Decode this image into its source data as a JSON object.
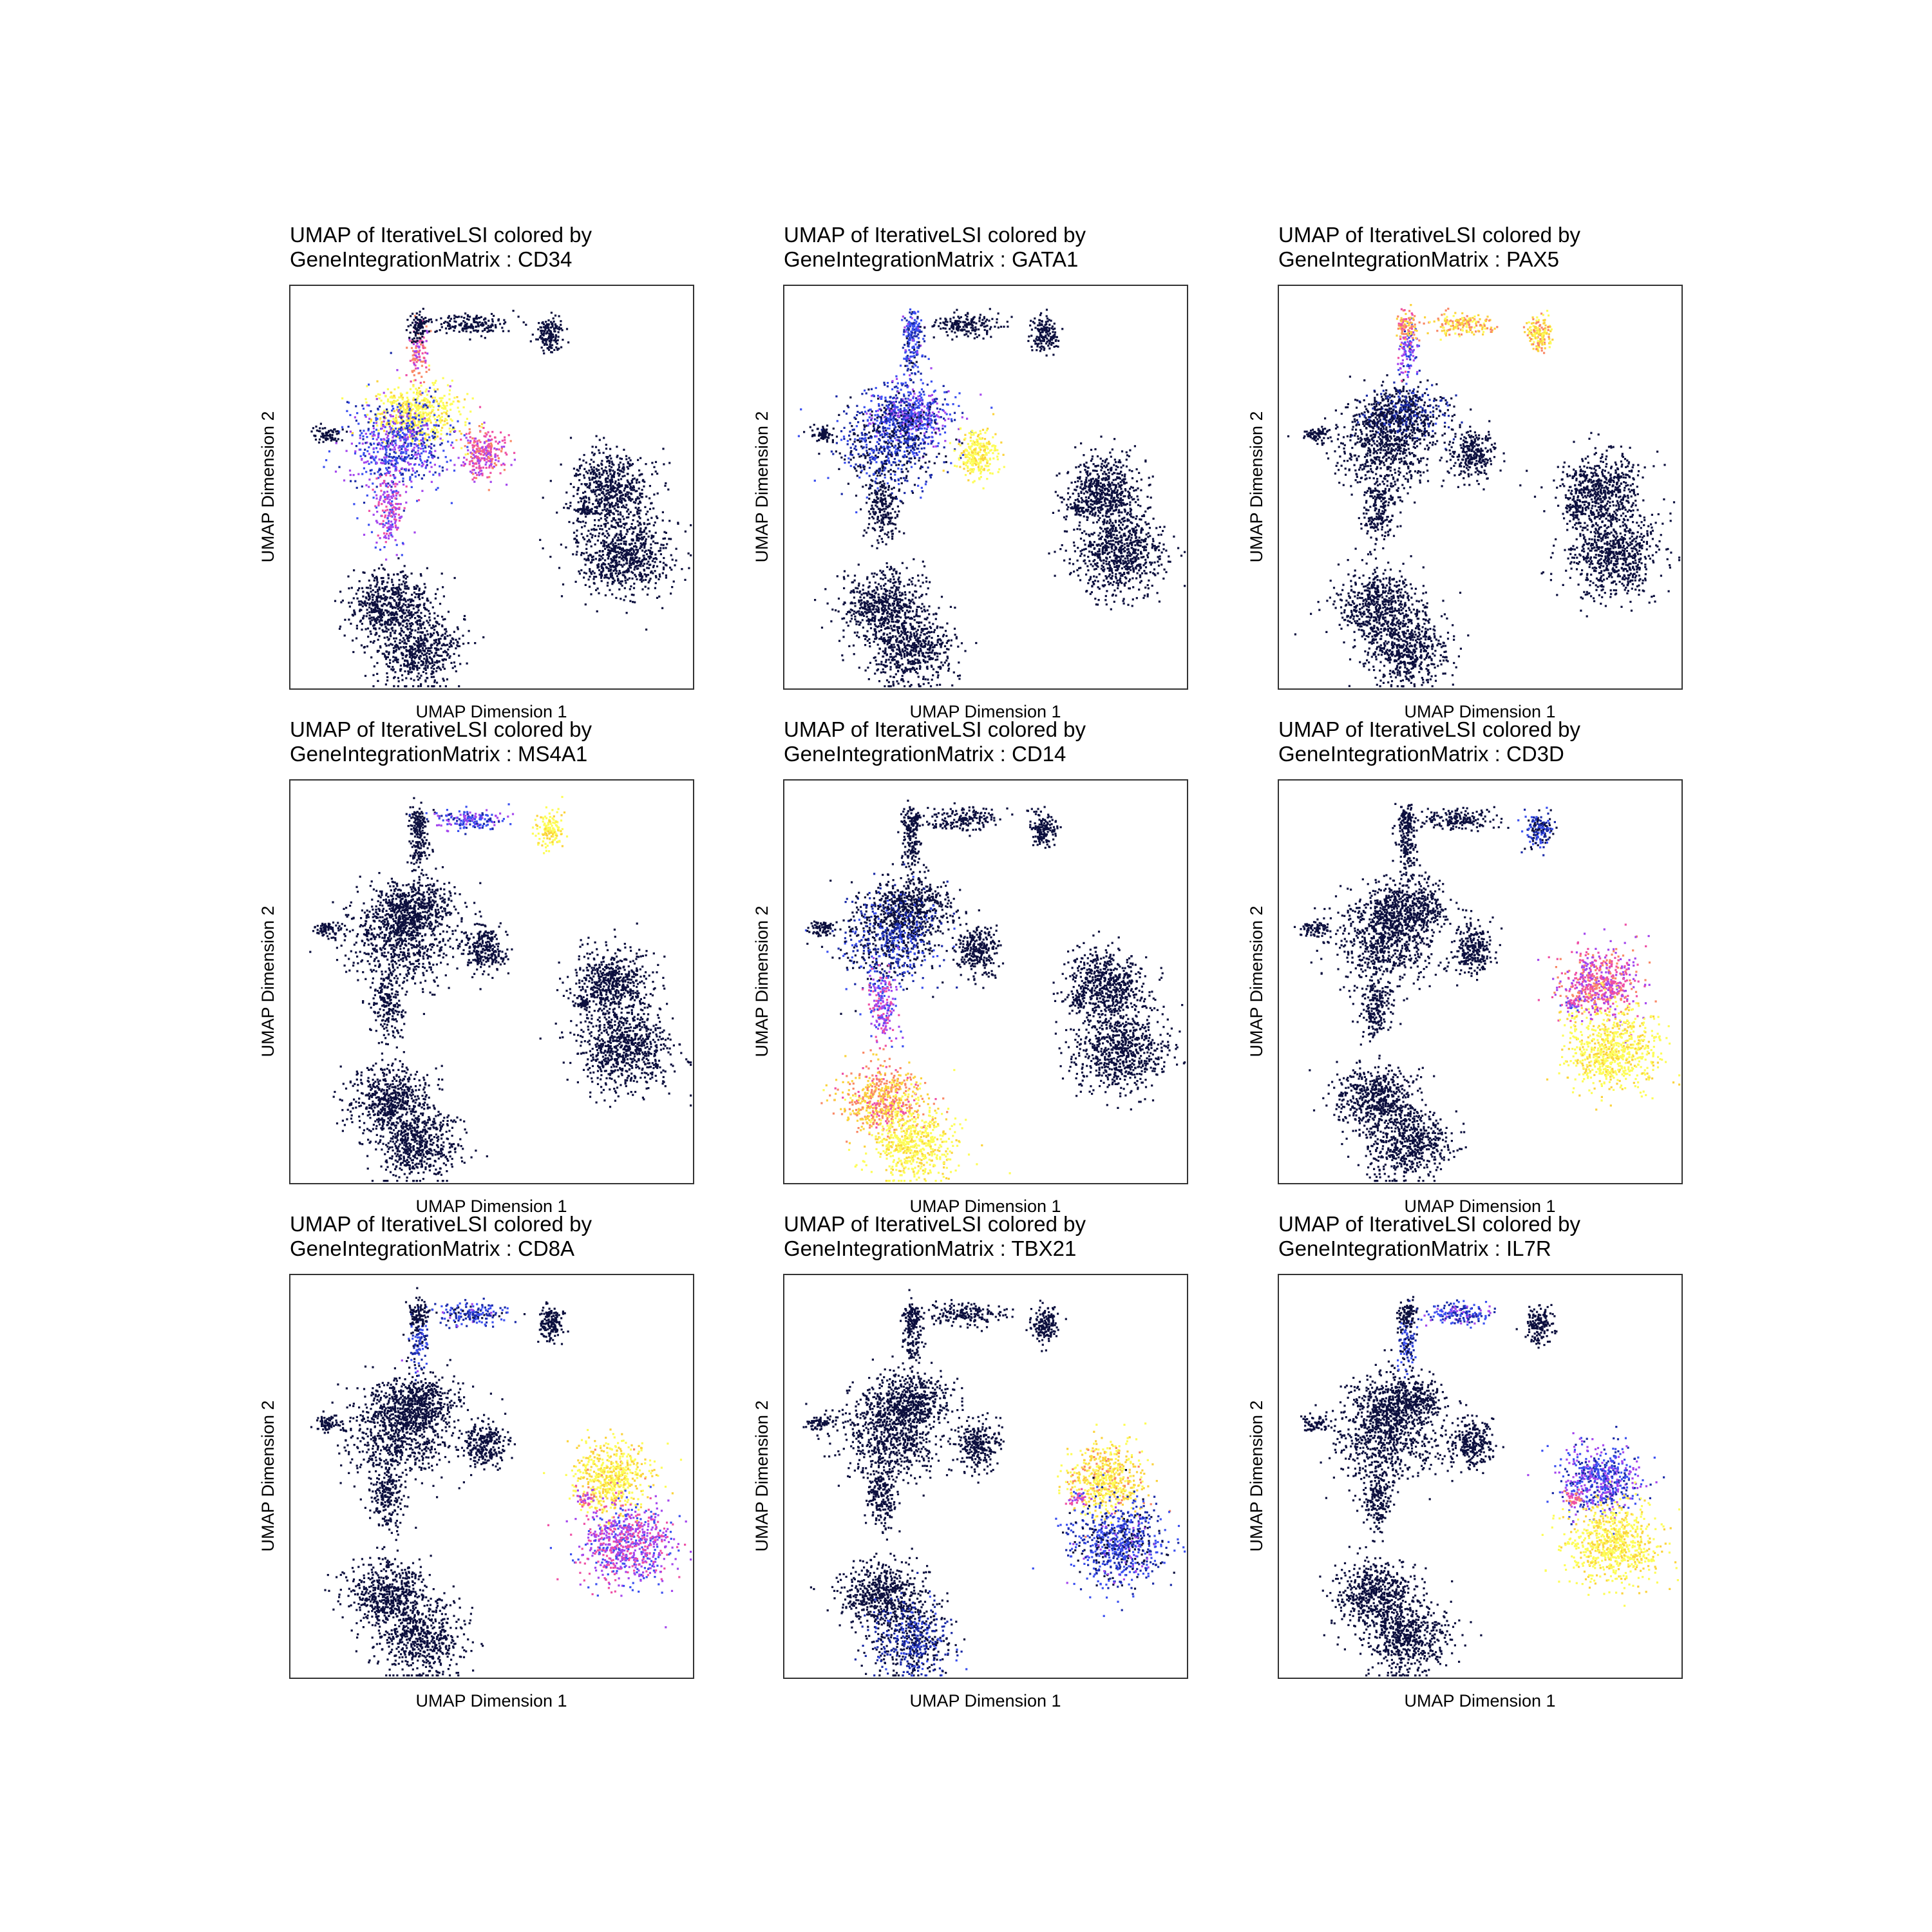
{
  "colors": {
    "background": "#ffffff",
    "frame": "#333333",
    "low": "#0c0f3e",
    "palette": [
      "#0c0f3e",
      "#1a2aa6",
      "#3a4ff0",
      "#a446ee",
      "#ee4fa6",
      "#f98866",
      "#fbd33d",
      "#fdfd58"
    ]
  },
  "chart_data": [
    {
      "type": "scatter",
      "title_line1": "UMAP of IterativeLSI colored by",
      "title_line2": "GeneIntegrationMatrix : CD34",
      "xlabel": "UMAP Dimension 1",
      "ylabel": "UMAP Dimension 2",
      "grid": false,
      "color_scale": "blue-purple-yellow",
      "expression": {
        "progenitor": 1.0,
        "erythroid": 0.55,
        "myeloid_bridge": 0.45,
        "left_mid": 0.3,
        "upper_stem": 0.6,
        "b_stem": 0.1
      }
    },
    {
      "type": "scatter",
      "title_line1": "UMAP of IterativeLSI colored by",
      "title_line2": "GeneIntegrationMatrix : GATA1",
      "xlabel": "UMAP Dimension 1",
      "ylabel": "UMAP Dimension 2",
      "grid": false,
      "color_scale": "blue-purple-yellow",
      "expression": {
        "erythroid": 1.0,
        "progenitor": 0.3,
        "upper_stem": 0.2,
        "pre_b": 0.25,
        "left_mid": 0.12
      }
    },
    {
      "type": "scatter",
      "title_line1": "UMAP of IterativeLSI colored by",
      "title_line2": "GeneIntegrationMatrix : PAX5",
      "xlabel": "UMAP Dimension 1",
      "ylabel": "UMAP Dimension 2",
      "grid": false,
      "color_scale": "blue-purple-yellow",
      "expression": {
        "pre_b": 0.75,
        "b_arm": 0.85,
        "b_cluster": 0.88,
        "upper_stem": 0.35,
        "b_stem": 0.5,
        "progenitor": 0.05
      }
    },
    {
      "type": "scatter",
      "title_line1": "UMAP of IterativeLSI colored by",
      "title_line2": "GeneIntegrationMatrix : MS4A1",
      "xlabel": "UMAP Dimension 1",
      "ylabel": "UMAP Dimension 2",
      "grid": false,
      "color_scale": "blue-purple-yellow",
      "expression": {
        "b_cluster": 1.0,
        "b_arm": 0.3
      }
    },
    {
      "type": "scatter",
      "title_line1": "UMAP of IterativeLSI colored by",
      "title_line2": "GeneIntegrationMatrix : CD14",
      "xlabel": "UMAP Dimension 1",
      "ylabel": "UMAP Dimension 2",
      "grid": false,
      "color_scale": "blue-purple-yellow",
      "expression": {
        "mono_lower": 1.0,
        "mono_upper": 0.78,
        "myeloid_bridge": 0.42,
        "left_mid": 0.1
      }
    },
    {
      "type": "scatter",
      "title_line1": "UMAP of IterativeLSI colored by",
      "title_line2": "GeneIntegrationMatrix : CD3D",
      "xlabel": "UMAP Dimension 1",
      "ylabel": "UMAP Dimension 2",
      "grid": false,
      "color_scale": "blue-purple-yellow",
      "expression": {
        "t_top": 0.55,
        "t_bottom": 1.0,
        "t_tail": 0.45,
        "b_cluster": 0.12
      }
    },
    {
      "type": "scatter",
      "title_line1": "UMAP of IterativeLSI colored by",
      "title_line2": "GeneIntegrationMatrix : CD8A",
      "xlabel": "UMAP Dimension 1",
      "ylabel": "UMAP Dimension 2",
      "grid": false,
      "color_scale": "blue-purple-yellow",
      "expression": {
        "t_top": 0.95,
        "t_bottom": 0.45,
        "t_tail": 0.5,
        "b_arm": 0.2,
        "upper_stem": 0.2
      }
    },
    {
      "type": "scatter",
      "title_line1": "UMAP of IterativeLSI colored by",
      "title_line2": "GeneIntegrationMatrix : TBX21",
      "xlabel": "UMAP Dimension 1",
      "ylabel": "UMAP Dimension 2",
      "grid": false,
      "color_scale": "blue-purple-yellow",
      "expression": {
        "t_top": 0.92,
        "t_bottom": 0.2,
        "t_tail": 0.45,
        "mono_lower": 0.08
      }
    },
    {
      "type": "scatter",
      "title_line1": "UMAP of IterativeLSI colored by",
      "title_line2": "GeneIntegrationMatrix : IL7R",
      "xlabel": "UMAP Dimension 1",
      "ylabel": "UMAP Dimension 2",
      "grid": false,
      "color_scale": "blue-purple-yellow",
      "expression": {
        "t_top": 0.3,
        "t_bottom": 0.98,
        "t_tail": 0.6,
        "b_arm": 0.25,
        "upper_stem": 0.15
      }
    }
  ]
}
